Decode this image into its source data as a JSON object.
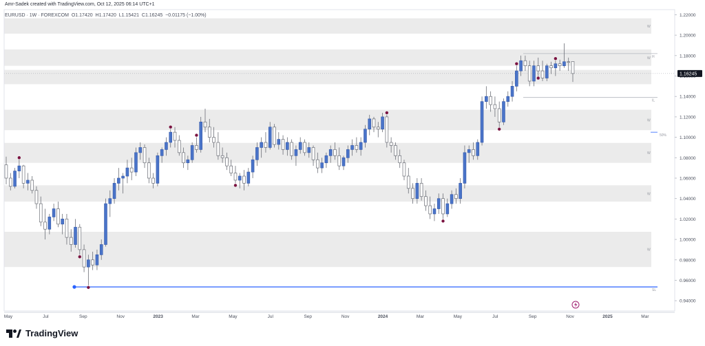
{
  "header": {
    "caption": "Amr-Sadek created with TradingView.com, Oct 12, 2025 06:14 UTC+1"
  },
  "legend": {
    "symbol": "EURUSD · 1W · FOREXCOM",
    "open_label": "O",
    "open": "1.17420",
    "high_label": "H",
    "high": "1.17420",
    "low_label": "L",
    "low": "1.15421",
    "close_label": "C",
    "close": "1.16245",
    "change": "−0.01175 (−1.00%)"
  },
  "brand": {
    "name": "TradingView"
  },
  "chart_data": {
    "type": "candlestick",
    "symbol": "EURUSD",
    "timeframe": "1W",
    "last_price": "1.16245",
    "ylim": [
      0.93,
      1.225
    ],
    "y_ticks": [
      "1.22000",
      "1.20000",
      "1.18000",
      "1.16000",
      "1.14000",
      "1.12000",
      "1.10000",
      "1.08000",
      "1.06000",
      "1.04000",
      "1.02000",
      "1.00000",
      "0.98000",
      "0.96000",
      "0.94000"
    ],
    "x_ticks": [
      "May",
      "Jul",
      "Sep",
      "Nov",
      "2023",
      "Mar",
      "May",
      "Jul",
      "Sep",
      "Nov",
      "2024",
      "Mar",
      "May",
      "Jul",
      "Sep",
      "Nov",
      "2025",
      "Mar",
      "May",
      "Jul",
      "Sep",
      "Nov",
      "2026",
      "Mar",
      "May"
    ],
    "candles": [
      {
        "o": 1.073,
        "h": 1.081,
        "l": 1.054,
        "c": 1.06,
        "u": 0
      },
      {
        "o": 1.06,
        "h": 1.065,
        "l": 1.048,
        "c": 1.052,
        "u": 0
      },
      {
        "o": 1.052,
        "h": 1.07,
        "l": 1.05,
        "c": 1.067,
        "u": 1
      },
      {
        "o": 1.067,
        "h": 1.078,
        "l": 1.06,
        "c": 1.072,
        "u": 1
      },
      {
        "o": 1.072,
        "h": 1.073,
        "l": 1.05,
        "c": 1.055,
        "u": 0
      },
      {
        "o": 1.055,
        "h": 1.065,
        "l": 1.048,
        "c": 1.058,
        "u": 1
      },
      {
        "o": 1.058,
        "h": 1.062,
        "l": 1.045,
        "c": 1.048,
        "u": 0
      },
      {
        "o": 1.048,
        "h": 1.052,
        "l": 1.03,
        "c": 1.035,
        "u": 0
      },
      {
        "o": 1.035,
        "h": 1.042,
        "l": 1.013,
        "c": 1.017,
        "u": 0
      },
      {
        "o": 1.017,
        "h": 1.03,
        "l": 1.0,
        "c": 1.01,
        "u": 0
      },
      {
        "o": 1.01,
        "h": 1.025,
        "l": 1.005,
        "c": 1.022,
        "u": 1
      },
      {
        "o": 1.022,
        "h": 1.035,
        "l": 1.018,
        "c": 1.03,
        "u": 1
      },
      {
        "o": 1.03,
        "h": 1.037,
        "l": 1.012,
        "c": 1.015,
        "u": 0
      },
      {
        "o": 1.015,
        "h": 1.025,
        "l": 1.005,
        "c": 1.02,
        "u": 1
      },
      {
        "o": 1.02,
        "h": 1.025,
        "l": 0.995,
        "c": 1.002,
        "u": 0
      },
      {
        "o": 1.002,
        "h": 1.01,
        "l": 0.988,
        "c": 0.995,
        "u": 0
      },
      {
        "o": 0.995,
        "h": 1.02,
        "l": 0.992,
        "c": 1.012,
        "u": 1
      },
      {
        "o": 1.012,
        "h": 1.015,
        "l": 0.985,
        "c": 0.99,
        "u": 0
      },
      {
        "o": 0.99,
        "h": 0.995,
        "l": 0.968,
        "c": 0.973,
        "u": 0
      },
      {
        "o": 0.973,
        "h": 0.985,
        "l": 0.955,
        "c": 0.98,
        "u": 1
      },
      {
        "o": 0.98,
        "h": 0.988,
        "l": 0.97,
        "c": 0.975,
        "u": 0
      },
      {
        "o": 0.975,
        "h": 0.99,
        "l": 0.97,
        "c": 0.985,
        "u": 1
      },
      {
        "o": 0.985,
        "h": 1.0,
        "l": 0.98,
        "c": 0.995,
        "u": 1
      },
      {
        "o": 0.995,
        "h": 1.04,
        "l": 0.993,
        "c": 1.035,
        "u": 1
      },
      {
        "o": 1.035,
        "h": 1.048,
        "l": 1.022,
        "c": 1.04,
        "u": 1
      },
      {
        "o": 1.04,
        "h": 1.06,
        "l": 1.035,
        "c": 1.055,
        "u": 1
      },
      {
        "o": 1.055,
        "h": 1.07,
        "l": 1.048,
        "c": 1.06,
        "u": 1
      },
      {
        "o": 1.06,
        "h": 1.065,
        "l": 1.045,
        "c": 1.062,
        "u": 1
      },
      {
        "o": 1.062,
        "h": 1.078,
        "l": 1.055,
        "c": 1.07,
        "u": 1
      },
      {
        "o": 1.07,
        "h": 1.08,
        "l": 1.058,
        "c": 1.066,
        "u": 0
      },
      {
        "o": 1.066,
        "h": 1.09,
        "l": 1.062,
        "c": 1.085,
        "u": 1
      },
      {
        "o": 1.085,
        "h": 1.095,
        "l": 1.078,
        "c": 1.09,
        "u": 1
      },
      {
        "o": 1.09,
        "h": 1.093,
        "l": 1.07,
        "c": 1.075,
        "u": 0
      },
      {
        "o": 1.075,
        "h": 1.08,
        "l": 1.055,
        "c": 1.06,
        "u": 0
      },
      {
        "o": 1.06,
        "h": 1.065,
        "l": 1.05,
        "c": 1.055,
        "u": 0
      },
      {
        "o": 1.055,
        "h": 1.085,
        "l": 1.052,
        "c": 1.082,
        "u": 1
      },
      {
        "o": 1.082,
        "h": 1.09,
        "l": 1.075,
        "c": 1.088,
        "u": 1
      },
      {
        "o": 1.088,
        "h": 1.1,
        "l": 1.082,
        "c": 1.095,
        "u": 1
      },
      {
        "o": 1.095,
        "h": 1.108,
        "l": 1.09,
        "c": 1.105,
        "u": 1
      },
      {
        "o": 1.105,
        "h": 1.11,
        "l": 1.09,
        "c": 1.097,
        "u": 0
      },
      {
        "o": 1.097,
        "h": 1.102,
        "l": 1.082,
        "c": 1.085,
        "u": 0
      },
      {
        "o": 1.085,
        "h": 1.09,
        "l": 1.07,
        "c": 1.075,
        "u": 0
      },
      {
        "o": 1.075,
        "h": 1.082,
        "l": 1.068,
        "c": 1.078,
        "u": 1
      },
      {
        "o": 1.078,
        "h": 1.095,
        "l": 1.075,
        "c": 1.092,
        "u": 1
      },
      {
        "o": 1.092,
        "h": 1.1,
        "l": 1.085,
        "c": 1.088,
        "u": 0
      },
      {
        "o": 1.088,
        "h": 1.12,
        "l": 1.085,
        "c": 1.115,
        "u": 1
      },
      {
        "o": 1.115,
        "h": 1.128,
        "l": 1.105,
        "c": 1.11,
        "u": 0
      },
      {
        "o": 1.11,
        "h": 1.118,
        "l": 1.095,
        "c": 1.1,
        "u": 0
      },
      {
        "o": 1.1,
        "h": 1.11,
        "l": 1.09,
        "c": 1.095,
        "u": 0
      },
      {
        "o": 1.095,
        "h": 1.105,
        "l": 1.078,
        "c": 1.082,
        "u": 0
      },
      {
        "o": 1.082,
        "h": 1.09,
        "l": 1.075,
        "c": 1.08,
        "u": 0
      },
      {
        "o": 1.08,
        "h": 1.085,
        "l": 1.068,
        "c": 1.072,
        "u": 0
      },
      {
        "o": 1.072,
        "h": 1.078,
        "l": 1.062,
        "c": 1.065,
        "u": 0
      },
      {
        "o": 1.065,
        "h": 1.072,
        "l": 1.055,
        "c": 1.058,
        "u": 0
      },
      {
        "o": 1.058,
        "h": 1.065,
        "l": 1.05,
        "c": 1.062,
        "u": 1
      },
      {
        "o": 1.062,
        "h": 1.068,
        "l": 1.048,
        "c": 1.055,
        "u": 0
      },
      {
        "o": 1.055,
        "h": 1.07,
        "l": 1.052,
        "c": 1.066,
        "u": 1
      },
      {
        "o": 1.066,
        "h": 1.082,
        "l": 1.06,
        "c": 1.078,
        "u": 1
      },
      {
        "o": 1.078,
        "h": 1.095,
        "l": 1.072,
        "c": 1.09,
        "u": 1
      },
      {
        "o": 1.09,
        "h": 1.1,
        "l": 1.08,
        "c": 1.095,
        "u": 1
      },
      {
        "o": 1.095,
        "h": 1.105,
        "l": 1.085,
        "c": 1.09,
        "u": 0
      },
      {
        "o": 1.09,
        "h": 1.115,
        "l": 1.088,
        "c": 1.11,
        "u": 1
      },
      {
        "o": 1.11,
        "h": 1.113,
        "l": 1.09,
        "c": 1.093,
        "u": 0
      },
      {
        "o": 1.093,
        "h": 1.105,
        "l": 1.088,
        "c": 1.098,
        "u": 1
      },
      {
        "o": 1.098,
        "h": 1.102,
        "l": 1.083,
        "c": 1.088,
        "u": 0
      },
      {
        "o": 1.088,
        "h": 1.1,
        "l": 1.082,
        "c": 1.095,
        "u": 1
      },
      {
        "o": 1.095,
        "h": 1.098,
        "l": 1.078,
        "c": 1.082,
        "u": 0
      },
      {
        "o": 1.082,
        "h": 1.092,
        "l": 1.072,
        "c": 1.088,
        "u": 1
      },
      {
        "o": 1.088,
        "h": 1.1,
        "l": 1.084,
        "c": 1.095,
        "u": 1
      },
      {
        "o": 1.095,
        "h": 1.098,
        "l": 1.082,
        "c": 1.085,
        "u": 0
      },
      {
        "o": 1.085,
        "h": 1.095,
        "l": 1.08,
        "c": 1.09,
        "u": 1
      },
      {
        "o": 1.09,
        "h": 1.092,
        "l": 1.072,
        "c": 1.078,
        "u": 0
      },
      {
        "o": 1.078,
        "h": 1.085,
        "l": 1.065,
        "c": 1.07,
        "u": 0
      },
      {
        "o": 1.07,
        "h": 1.08,
        "l": 1.065,
        "c": 1.075,
        "u": 1
      },
      {
        "o": 1.075,
        "h": 1.085,
        "l": 1.07,
        "c": 1.082,
        "u": 1
      },
      {
        "o": 1.082,
        "h": 1.092,
        "l": 1.075,
        "c": 1.088,
        "u": 1
      },
      {
        "o": 1.088,
        "h": 1.095,
        "l": 1.078,
        "c": 1.082,
        "u": 0
      },
      {
        "o": 1.082,
        "h": 1.09,
        "l": 1.068,
        "c": 1.072,
        "u": 0
      },
      {
        "o": 1.072,
        "h": 1.082,
        "l": 1.068,
        "c": 1.08,
        "u": 1
      },
      {
        "o": 1.08,
        "h": 1.092,
        "l": 1.075,
        "c": 1.088,
        "u": 1
      },
      {
        "o": 1.088,
        "h": 1.098,
        "l": 1.082,
        "c": 1.092,
        "u": 1
      },
      {
        "o": 1.092,
        "h": 1.1,
        "l": 1.085,
        "c": 1.088,
        "u": 0
      },
      {
        "o": 1.088,
        "h": 1.1,
        "l": 1.082,
        "c": 1.095,
        "u": 1
      },
      {
        "o": 1.095,
        "h": 1.112,
        "l": 1.09,
        "c": 1.108,
        "u": 1
      },
      {
        "o": 1.108,
        "h": 1.122,
        "l": 1.102,
        "c": 1.118,
        "u": 1
      },
      {
        "o": 1.118,
        "h": 1.12,
        "l": 1.105,
        "c": 1.11,
        "u": 0
      },
      {
        "o": 1.11,
        "h": 1.115,
        "l": 1.1,
        "c": 1.108,
        "u": 0
      },
      {
        "o": 1.108,
        "h": 1.124,
        "l": 1.105,
        "c": 1.12,
        "u": 1
      },
      {
        "o": 1.12,
        "h": 1.122,
        "l": 1.09,
        "c": 1.095,
        "u": 0
      },
      {
        "o": 1.095,
        "h": 1.1,
        "l": 1.085,
        "c": 1.092,
        "u": 0
      },
      {
        "o": 1.092,
        "h": 1.095,
        "l": 1.078,
        "c": 1.082,
        "u": 0
      },
      {
        "o": 1.082,
        "h": 1.088,
        "l": 1.07,
        "c": 1.075,
        "u": 0
      },
      {
        "o": 1.075,
        "h": 1.078,
        "l": 1.058,
        "c": 1.062,
        "u": 0
      },
      {
        "o": 1.062,
        "h": 1.07,
        "l": 1.045,
        "c": 1.05,
        "u": 0
      },
      {
        "o": 1.05,
        "h": 1.055,
        "l": 1.035,
        "c": 1.04,
        "u": 0
      },
      {
        "o": 1.04,
        "h": 1.06,
        "l": 1.035,
        "c": 1.055,
        "u": 1
      },
      {
        "o": 1.055,
        "h": 1.06,
        "l": 1.038,
        "c": 1.042,
        "u": 0
      },
      {
        "o": 1.042,
        "h": 1.048,
        "l": 1.028,
        "c": 1.033,
        "u": 0
      },
      {
        "o": 1.033,
        "h": 1.042,
        "l": 1.02,
        "c": 1.025,
        "u": 0
      },
      {
        "o": 1.025,
        "h": 1.035,
        "l": 1.018,
        "c": 1.03,
        "u": 1
      },
      {
        "o": 1.03,
        "h": 1.045,
        "l": 1.025,
        "c": 1.04,
        "u": 1
      },
      {
        "o": 1.04,
        "h": 1.045,
        "l": 1.02,
        "c": 1.025,
        "u": 0
      },
      {
        "o": 1.025,
        "h": 1.04,
        "l": 1.022,
        "c": 1.035,
        "u": 1
      },
      {
        "o": 1.035,
        "h": 1.048,
        "l": 1.03,
        "c": 1.044,
        "u": 1
      },
      {
        "o": 1.044,
        "h": 1.05,
        "l": 1.035,
        "c": 1.04,
        "u": 0
      },
      {
        "o": 1.04,
        "h": 1.06,
        "l": 1.035,
        "c": 1.055,
        "u": 1
      },
      {
        "o": 1.055,
        "h": 1.092,
        "l": 1.05,
        "c": 1.085,
        "u": 1
      },
      {
        "o": 1.085,
        "h": 1.092,
        "l": 1.075,
        "c": 1.088,
        "u": 1
      },
      {
        "o": 1.088,
        "h": 1.095,
        "l": 1.078,
        "c": 1.082,
        "u": 0
      },
      {
        "o": 1.082,
        "h": 1.098,
        "l": 1.078,
        "c": 1.095,
        "u": 1
      },
      {
        "o": 1.095,
        "h": 1.14,
        "l": 1.092,
        "c": 1.135,
        "u": 1
      },
      {
        "o": 1.135,
        "h": 1.15,
        "l": 1.128,
        "c": 1.14,
        "u": 1
      },
      {
        "o": 1.14,
        "h": 1.145,
        "l": 1.125,
        "c": 1.132,
        "u": 0
      },
      {
        "o": 1.132,
        "h": 1.14,
        "l": 1.12,
        "c": 1.128,
        "u": 0
      },
      {
        "o": 1.128,
        "h": 1.135,
        "l": 1.11,
        "c": 1.115,
        "u": 0
      },
      {
        "o": 1.115,
        "h": 1.138,
        "l": 1.112,
        "c": 1.135,
        "u": 1
      },
      {
        "o": 1.135,
        "h": 1.145,
        "l": 1.13,
        "c": 1.14,
        "u": 1
      },
      {
        "o": 1.14,
        "h": 1.155,
        "l": 1.135,
        "c": 1.15,
        "u": 1
      },
      {
        "o": 1.15,
        "h": 1.17,
        "l": 1.145,
        "c": 1.165,
        "u": 1
      },
      {
        "o": 1.165,
        "h": 1.18,
        "l": 1.16,
        "c": 1.175,
        "u": 1
      },
      {
        "o": 1.175,
        "h": 1.18,
        "l": 1.165,
        "c": 1.17,
        "u": 0
      },
      {
        "o": 1.17,
        "h": 1.175,
        "l": 1.15,
        "c": 1.155,
        "u": 0
      },
      {
        "o": 1.155,
        "h": 1.175,
        "l": 1.15,
        "c": 1.17,
        "u": 1
      },
      {
        "o": 1.17,
        "h": 1.178,
        "l": 1.16,
        "c": 1.165,
        "u": 0
      },
      {
        "o": 1.165,
        "h": 1.175,
        "l": 1.155,
        "c": 1.158,
        "u": 0
      },
      {
        "o": 1.158,
        "h": 1.172,
        "l": 1.155,
        "c": 1.17,
        "u": 1
      },
      {
        "o": 1.17,
        "h": 1.174,
        "l": 1.162,
        "c": 1.168,
        "u": 0
      },
      {
        "o": 1.168,
        "h": 1.175,
        "l": 1.16,
        "c": 1.172,
        "u": 1
      },
      {
        "o": 1.172,
        "h": 1.176,
        "l": 1.165,
        "c": 1.17,
        "u": 0
      },
      {
        "o": 1.17,
        "h": 1.192,
        "l": 1.168,
        "c": 1.174,
        "u": 1
      },
      {
        "o": 1.174,
        "h": 1.178,
        "l": 1.165,
        "c": 1.174,
        "u": 0
      },
      {
        "o": 1.1742,
        "h": 1.1742,
        "l": 1.1542,
        "c": 1.16245,
        "u": 0
      }
    ],
    "zones": [
      {
        "top": 1.2165,
        "bottom": 1.2015,
        "label": "W"
      },
      {
        "top": 1.186,
        "bottom": 1.17,
        "label": "W"
      },
      {
        "top": 1.166,
        "bottom": 1.152,
        "label": ""
      },
      {
        "top": 1.127,
        "bottom": 1.107,
        "label": "W"
      },
      {
        "top": 1.0945,
        "bottom": 1.075,
        "label": "W"
      },
      {
        "top": 1.053,
        "bottom": 1.037,
        "label": "W"
      },
      {
        "top": 1.0075,
        "bottom": 0.973,
        "label": "W"
      }
    ],
    "levels": [
      {
        "price": 1.182,
        "label": "H"
      },
      {
        "price": 1.139,
        "label": "IL"
      },
      {
        "price": 1.105,
        "label": "50%"
      },
      {
        "price": 0.9535,
        "label": "SL"
      }
    ],
    "status_icon": "lightning-icon"
  }
}
